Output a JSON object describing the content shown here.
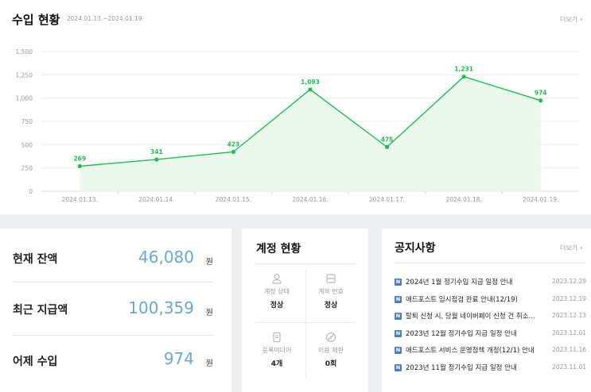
{
  "income": {
    "title": "수입 현황",
    "date_range": "2024.01.13.~2024.01.19.",
    "more_label": "더보기"
  },
  "chart_data": {
    "type": "area",
    "x": [
      "2024.01.13.",
      "2024.01.14.",
      "2024.01.15.",
      "2024.01.16.",
      "2024.01.17.",
      "2024.01.18.",
      "2024.01.19."
    ],
    "values": [
      269,
      341,
      423,
      1093,
      475,
      1231,
      974
    ],
    "value_labels": [
      "269",
      "341",
      "423",
      "1,093",
      "475",
      "1,231",
      "974"
    ],
    "y_ticks": [
      "0",
      "250",
      "500",
      "750",
      "1,000",
      "1,250",
      "1,500"
    ],
    "ylim": [
      0,
      1500
    ],
    "grid": true,
    "line_color": "#1fbf4a",
    "fill_color": "#eaf8ee"
  },
  "balance": {
    "rows": [
      {
        "label": "현재 잔액",
        "value": "46,080",
        "unit": "원"
      },
      {
        "label": "최근 지급액",
        "value": "100,359",
        "unit": "원"
      },
      {
        "label": "어제 수입",
        "value": "974",
        "unit": "원"
      }
    ],
    "value_color": "#6aa8d8"
  },
  "account": {
    "title": "계정 현황",
    "cells": [
      {
        "icon": "person-icon",
        "label": "계정 상태",
        "value": "정상"
      },
      {
        "icon": "bank-icon",
        "label": "계좌 번호",
        "value": "정상"
      },
      {
        "icon": "document-icon",
        "label": "등록미디어",
        "value": "4개"
      },
      {
        "icon": "block-icon",
        "label": "이용 제한",
        "value": "0회"
      }
    ]
  },
  "notices": {
    "title": "공지사항",
    "more_label": "더보기",
    "badge": "N",
    "items": [
      {
        "text": "2024년 1월 정기수입 지급 일정 안내",
        "date": "2023.12.29"
      },
      {
        "text": "애드포스트 임시점검 완료 안내(12/19)",
        "date": "2023.12.19"
      },
      {
        "text": "탈퇴 신청 시, 당월 네이버페이 신청 건 취소...",
        "date": "2023.12.13"
      },
      {
        "text": "2023년 12월 정기수입 지급 일정 안내",
        "date": "2023.12.01"
      },
      {
        "text": "애드포스트 서비스 운영정책 개정(12/1) 안내",
        "date": "2023.11.16"
      },
      {
        "text": "2023년 11월 정기수입 지급 일정 안내",
        "date": "2023.11.01"
      }
    ]
  }
}
